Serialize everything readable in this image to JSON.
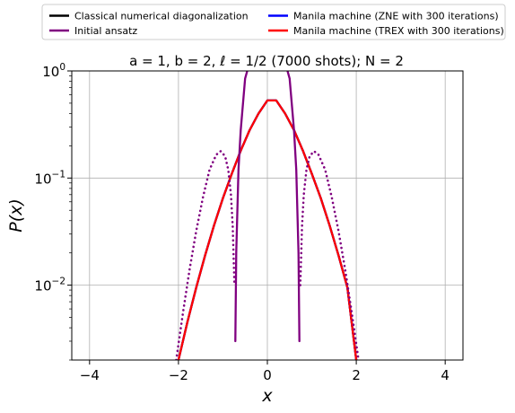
{
  "chart_data": {
    "type": "line",
    "title": "a = 1, b = 2, ℓ = 1/2 (7000 shots); N = 2",
    "xlabel": "x",
    "ylabel": "P(x)",
    "xlim": [
      -4.4,
      4.4
    ],
    "ylim": [
      0.002,
      1.0
    ],
    "yscale": "log",
    "grid": true,
    "legend_placement": "top, outside plot, 2 columns",
    "x_ticks": [
      -4,
      -2,
      0,
      2,
      4
    ],
    "x_tick_labels": [
      "−4",
      "−2",
      "0",
      "2",
      "4"
    ],
    "y_ticks": [
      0.01,
      0.1,
      1
    ],
    "y_tick_labels": [
      {
        "base": "10",
        "exp": "−2"
      },
      {
        "base": "10",
        "exp": "−1"
      },
      {
        "base": "10",
        "exp": "0"
      }
    ],
    "legend": [
      {
        "label": "Classical numerical diagonalization",
        "color": "#000000"
      },
      {
        "label": "Initial ansatz",
        "color": "#800080"
      },
      {
        "label": "Manila machine (ZNE with 300 iterations)",
        "color": "#0000ff"
      },
      {
        "label": "Manila machine (TREX with 300 iterations)",
        "color": "#ff0000"
      }
    ],
    "series": [
      {
        "name": "Classical numerical diagonalization",
        "color": "#000000",
        "style": "solid",
        "x": [
          -2,
          -1.8,
          -1.6,
          -1.4,
          -1.2,
          -1.0,
          -0.8,
          -0.6,
          -0.4,
          -0.2,
          0,
          0.2,
          0.4,
          0.6,
          0.8,
          1.0,
          1.2,
          1.4,
          1.6,
          1.8,
          2.0
        ],
        "y": [
          0.002,
          0.0045,
          0.0095,
          0.019,
          0.036,
          0.065,
          0.11,
          0.18,
          0.28,
          0.4,
          0.53,
          0.53,
          0.4,
          0.28,
          0.18,
          0.11,
          0.065,
          0.036,
          0.019,
          0.0095,
          0.002
        ]
      },
      {
        "name": "Manila machine (ZNE with 300 iterations)",
        "color": "#0000ff",
        "style": "solid",
        "x": [
          -2,
          -1.8,
          -1.6,
          -1.4,
          -1.2,
          -1.0,
          -0.8,
          -0.6,
          -0.4,
          -0.2,
          0,
          0.2,
          0.4,
          0.6,
          0.8,
          1.0,
          1.2,
          1.4,
          1.6,
          1.8,
          2.0
        ],
        "y": [
          0.002,
          0.0045,
          0.0095,
          0.019,
          0.036,
          0.065,
          0.11,
          0.18,
          0.28,
          0.4,
          0.53,
          0.53,
          0.4,
          0.28,
          0.18,
          0.11,
          0.065,
          0.036,
          0.019,
          0.0095,
          0.002
        ]
      },
      {
        "name": "Manila machine (TREX with 300 iterations)",
        "color": "#ff0000",
        "style": "solid",
        "x": [
          -2,
          -1.8,
          -1.6,
          -1.4,
          -1.2,
          -1.0,
          -0.8,
          -0.6,
          -0.4,
          -0.2,
          0,
          0.2,
          0.4,
          0.6,
          0.8,
          1.0,
          1.2,
          1.4,
          1.6,
          1.8,
          2.0
        ],
        "y": [
          0.002,
          0.0045,
          0.0095,
          0.019,
          0.036,
          0.065,
          0.11,
          0.18,
          0.28,
          0.4,
          0.53,
          0.53,
          0.4,
          0.28,
          0.18,
          0.11,
          0.065,
          0.036,
          0.019,
          0.0095,
          0.002
        ]
      },
      {
        "name": "Initial ansatz",
        "color": "#800080",
        "style": "solid",
        "x": [
          -0.72,
          -0.7,
          -0.65,
          -0.6,
          -0.5,
          -0.4,
          -0.3,
          -0.2,
          -0.1,
          0,
          0.1,
          0.2,
          0.3,
          0.4,
          0.5,
          0.6,
          0.65,
          0.7,
          0.72
        ],
        "y": [
          0.003,
          0.02,
          0.12,
          0.28,
          0.85,
          1.2,
          1.2,
          1.2,
          1.2,
          1.2,
          1.2,
          1.2,
          1.2,
          1.2,
          0.85,
          0.28,
          0.12,
          0.02,
          0.003
        ]
      },
      {
        "name": "",
        "color": "#800080",
        "style": "dotted",
        "x": [
          -2.05,
          -1.9,
          -1.75,
          -1.6,
          -1.45,
          -1.3,
          -1.15,
          -1.05,
          -0.95,
          -0.88,
          -0.82,
          -0.78,
          -0.74
        ],
        "y": [
          0.002,
          0.0055,
          0.014,
          0.032,
          0.066,
          0.12,
          0.165,
          0.178,
          0.16,
          0.12,
          0.07,
          0.035,
          0.01
        ]
      },
      {
        "name": "",
        "color": "#800080",
        "style": "dotted",
        "x": [
          0.74,
          0.78,
          0.82,
          0.88,
          0.95,
          1.05,
          1.15,
          1.3,
          1.45,
          1.6,
          1.75,
          1.9,
          2.05
        ],
        "y": [
          0.01,
          0.035,
          0.07,
          0.12,
          0.16,
          0.178,
          0.165,
          0.12,
          0.066,
          0.032,
          0.014,
          0.0055,
          0.002
        ]
      }
    ]
  }
}
